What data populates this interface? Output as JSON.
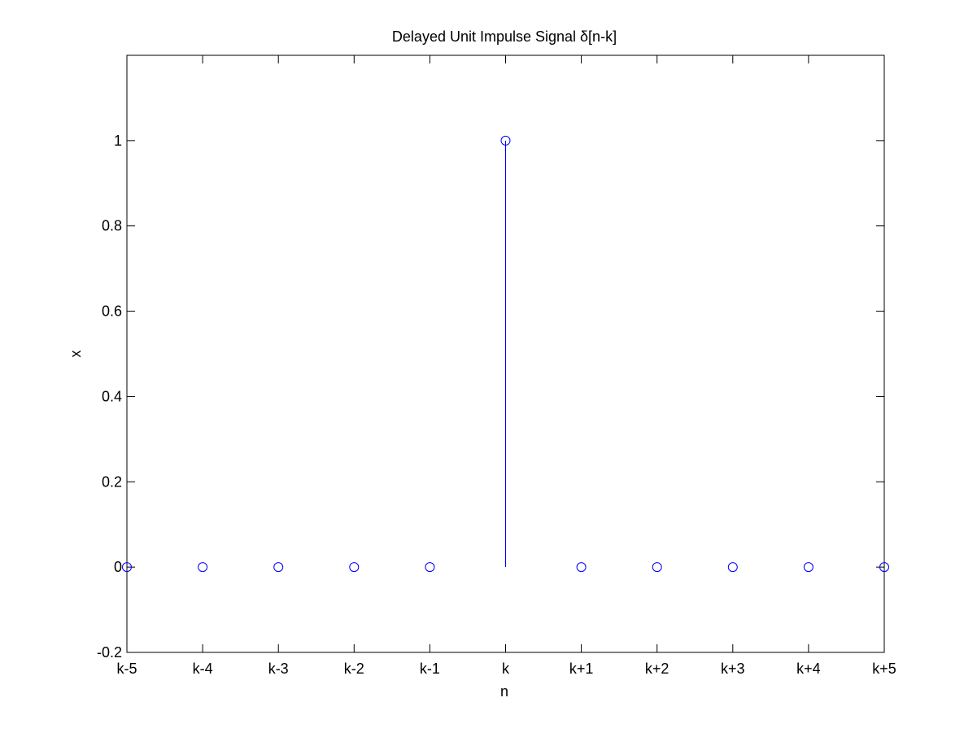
{
  "chart_data": {
    "type": "stem",
    "title": "Delayed Unit Impulse Signal δ[n-k]",
    "xlabel": "n",
    "ylabel": "x",
    "x": [
      -5,
      -4,
      -3,
      -2,
      -1,
      0,
      1,
      2,
      3,
      4,
      5
    ],
    "x_tick_labels": [
      "k-5",
      "k-4",
      "k-3",
      "k-2",
      "k-1",
      "k",
      "k+1",
      "k+2",
      "k+3",
      "k+4",
      "k+5"
    ],
    "values": [
      0,
      0,
      0,
      0,
      0,
      1,
      0,
      0,
      0,
      0,
      0
    ],
    "xlim": [
      -5,
      5
    ],
    "ylim": [
      -0.2,
      1.2
    ],
    "y_ticks": [
      -0.2,
      0,
      0.2,
      0.4,
      0.6,
      0.8,
      1
    ],
    "y_tick_labels": [
      "-0.2",
      "0",
      "0.2",
      "0.4",
      "0.6",
      "0.8",
      "1"
    ],
    "grid": false,
    "legend": "none",
    "series_color": "#0000ff",
    "axes_color": "#000000"
  }
}
